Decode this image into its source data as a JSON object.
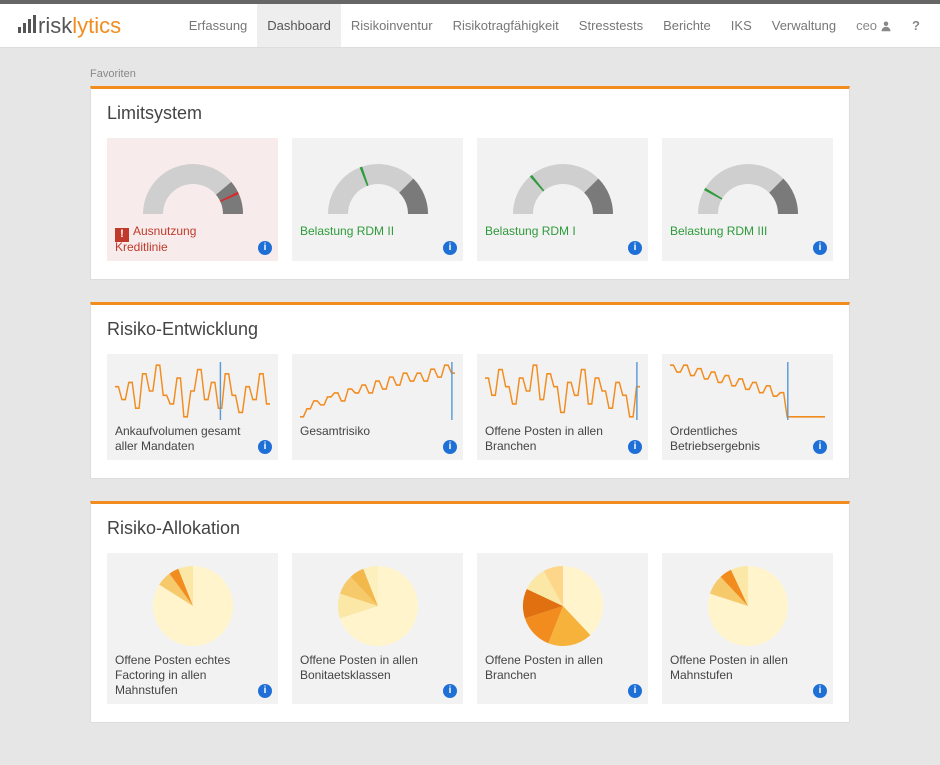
{
  "brand": {
    "part1": "risk",
    "part2": "lytics"
  },
  "nav": {
    "items": [
      {
        "label": "Erfassung"
      },
      {
        "label": "Dashboard",
        "active": true
      },
      {
        "label": "Risikoinventur"
      },
      {
        "label": "Risikotragfähigkeit"
      },
      {
        "label": "Stresstests"
      },
      {
        "label": "Berichte"
      },
      {
        "label": "IKS"
      },
      {
        "label": "Verwaltung"
      }
    ],
    "user": "ceo",
    "help": "?"
  },
  "favorites_label": "Favoriten",
  "colors": {
    "accent": "#f28c1e",
    "gauge_bg": "#cfcfcf",
    "gauge_dark": "#7a7a7a",
    "gauge_green": "#2e9a3a",
    "gauge_red": "#d02f2f",
    "spark": "#f28c1e",
    "spark_marker": "#5b9bd5",
    "info": "#1e6fd6",
    "alert": "#c0392b",
    "card_bg": "#f2f2f2",
    "card_alert_bg": "#f7eceb"
  },
  "panels": [
    {
      "title": "Limitsystem",
      "type": "gauge",
      "cards": [
        {
          "label": "Ausnutzung Kreditlinie",
          "label_color": "red",
          "alert": true,
          "gauge": {
            "dark_start": 140,
            "needle": 155,
            "needle_color": "#d02f2f"
          }
        },
        {
          "label": "Belastung RDM II",
          "label_color": "green",
          "gauge": {
            "dark_start": 135,
            "needle": 70,
            "needle_color": "#2e9a3a"
          }
        },
        {
          "label": "Belastung RDM I",
          "label_color": "green",
          "gauge": {
            "dark_start": 135,
            "needle": 50,
            "needle_color": "#2e9a3a"
          }
        },
        {
          "label": "Belastung RDM III",
          "label_color": "green",
          "gauge": {
            "dark_start": 135,
            "needle": 30,
            "needle_color": "#2e9a3a"
          }
        }
      ]
    },
    {
      "title": "Risiko-Entwicklung",
      "type": "spark",
      "cards": [
        {
          "label": "Ankaufvolumen gesamt aller Mandaten",
          "marker_x": 0.68,
          "y": [
            28,
            28,
            22,
            22,
            30,
            30,
            18,
            18,
            34,
            34,
            26,
            26,
            38,
            38,
            24,
            24,
            20,
            20,
            32,
            32,
            14,
            14,
            26,
            26,
            36,
            36,
            22,
            22,
            30,
            30,
            18,
            18,
            34,
            34,
            24,
            24,
            16,
            16,
            28,
            28,
            22,
            22,
            34,
            34,
            20,
            20
          ]
        },
        {
          "label": "Gesamtrisiko",
          "marker_x": 0.98,
          "y": [
            18,
            18,
            22,
            22,
            26,
            26,
            24,
            24,
            28,
            28,
            30,
            30,
            26,
            26,
            32,
            32,
            30,
            30,
            34,
            34,
            30,
            30,
            36,
            36,
            32,
            32,
            38,
            38,
            34,
            34,
            40,
            40,
            36,
            36,
            40,
            40,
            36,
            36,
            42,
            42,
            38,
            38,
            44,
            44,
            40,
            40
          ]
        },
        {
          "label": "Offene Posten in allen Branchen",
          "marker_x": 0.98,
          "y": [
            30,
            30,
            22,
            22,
            34,
            34,
            26,
            26,
            18,
            18,
            30,
            30,
            24,
            24,
            36,
            36,
            20,
            20,
            32,
            32,
            26,
            26,
            14,
            14,
            28,
            28,
            22,
            22,
            34,
            34,
            18,
            18,
            30,
            30,
            24,
            24,
            16,
            16,
            28,
            28,
            22,
            22,
            12,
            12,
            26,
            26
          ]
        },
        {
          "label": "Ordentliches Betriebsergebnis",
          "marker_x": 0.76,
          "y": [
            40,
            40,
            36,
            36,
            40,
            40,
            34,
            34,
            38,
            38,
            32,
            32,
            36,
            36,
            30,
            30,
            34,
            34,
            28,
            28,
            32,
            32,
            26,
            26,
            30,
            30,
            24,
            24,
            28,
            28,
            22,
            22,
            24,
            24,
            10,
            10,
            10,
            10,
            10,
            10,
            10,
            10,
            10,
            10,
            10,
            10
          ]
        }
      ]
    },
    {
      "title": "Risiko-Allokation",
      "type": "pie",
      "cards": [
        {
          "label": "Offene Posten echtes Factoring in allen Mahnstufen",
          "slices": [
            {
              "v": 84,
              "c": "#fff4cc"
            },
            {
              "v": 6,
              "c": "#f6c96b"
            },
            {
              "v": 4,
              "c": "#f28c1e"
            },
            {
              "v": 6,
              "c": "#fbe8a6"
            }
          ]
        },
        {
          "label": "Offene Posten in allen Bonitaetsklassen",
          "slices": [
            {
              "v": 70,
              "c": "#fff4cc"
            },
            {
              "v": 10,
              "c": "#fbe8a6"
            },
            {
              "v": 8,
              "c": "#f6c96b"
            },
            {
              "v": 6,
              "c": "#f2b84b"
            },
            {
              "v": 6,
              "c": "#fdf0bf"
            }
          ]
        },
        {
          "label": "Offene Posten in allen Branchen",
          "slices": [
            {
              "v": 38,
              "c": "#fff4cc"
            },
            {
              "v": 18,
              "c": "#f6b23a"
            },
            {
              "v": 14,
              "c": "#f28c1e"
            },
            {
              "v": 12,
              "c": "#e07010"
            },
            {
              "v": 10,
              "c": "#fbe8a6"
            },
            {
              "v": 8,
              "c": "#fdd68a"
            }
          ]
        },
        {
          "label": "Offene Posten in allen Mahnstufen",
          "slices": [
            {
              "v": 80,
              "c": "#fff4cc"
            },
            {
              "v": 8,
              "c": "#f6c96b"
            },
            {
              "v": 5,
              "c": "#f28c1e"
            },
            {
              "v": 7,
              "c": "#fbe8a6"
            }
          ]
        }
      ]
    }
  ]
}
